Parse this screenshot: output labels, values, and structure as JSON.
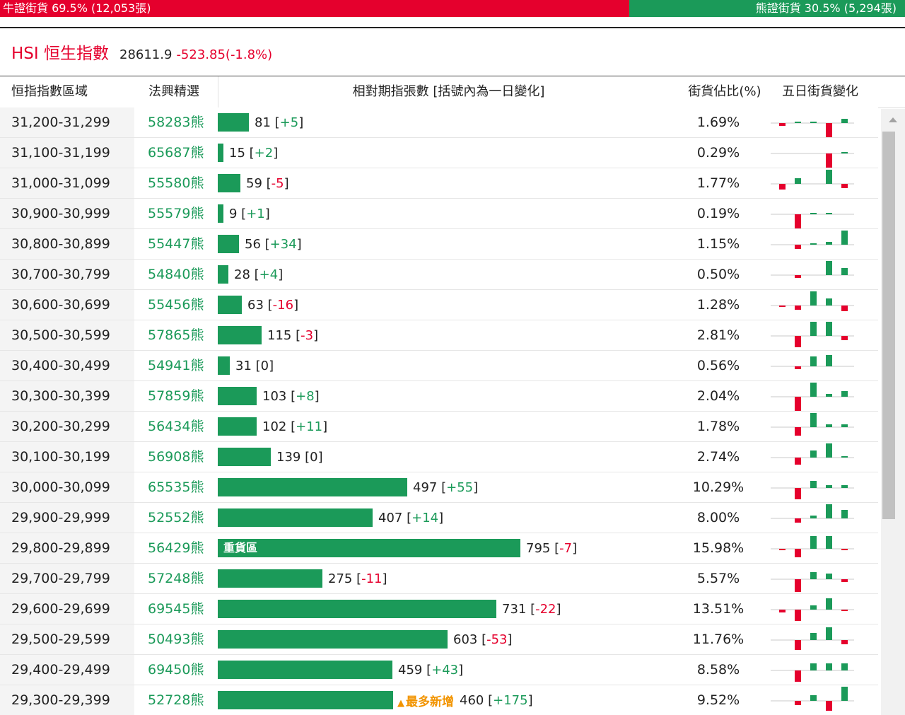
{
  "summary": {
    "bull_label": "牛證街貨 69.5% (12,053張)",
    "bull_fraction": 0.695,
    "bear_label": "熊證街貨 30.5% (5,294張)"
  },
  "index": {
    "name": "HSI 恒生指數",
    "value": "28611.9",
    "change": "-523.85(-1.8%)"
  },
  "headers": {
    "range": "恒指指數區域",
    "warrant": "法興精選",
    "qty": "相對期指張數 [括號內為一日變化]",
    "pct": "街貨佔比(%)",
    "five_day": "五日街貨變化"
  },
  "colors": {
    "up": "#1b9a59",
    "down": "#e5002d",
    "tag": "#f29400"
  },
  "bar_scale_max": 795,
  "rows": [
    {
      "range": "31,200-31,299",
      "warrant": "58283熊",
      "qty": 81,
      "qty_label": "81",
      "chg": "+5",
      "pct": "1.69%",
      "five": [
        -1,
        0.5,
        0.5,
        -5,
        1.5
      ]
    },
    {
      "range": "31,100-31,199",
      "warrant": "65687熊",
      "qty": 15,
      "qty_label": "15",
      "chg": "+2",
      "pct": "0.29%",
      "five": [
        0,
        0,
        0,
        -5,
        0.5
      ]
    },
    {
      "range": "31,000-31,099",
      "warrant": "55580熊",
      "qty": 59,
      "qty_label": "59",
      "chg": "-5",
      "pct": "1.77%",
      "five": [
        -2,
        2,
        0,
        5,
        -1.5
      ]
    },
    {
      "range": "30,900-30,999",
      "warrant": "55579熊",
      "qty": 9,
      "qty_label": "9",
      "chg": "+1",
      "pct": "0.19%",
      "five": [
        0,
        -5,
        0.5,
        0.5,
        0
      ]
    },
    {
      "range": "30,800-30,899",
      "warrant": "55447熊",
      "qty": 56,
      "qty_label": "56",
      "chg": "+34",
      "pct": "1.15%",
      "five": [
        0,
        -1.5,
        0.5,
        1,
        5
      ]
    },
    {
      "range": "30,700-30,799",
      "warrant": "54840熊",
      "qty": 28,
      "qty_label": "28",
      "chg": "+4",
      "pct": "0.50%",
      "five": [
        0,
        -1,
        0,
        5,
        2.5
      ]
    },
    {
      "range": "30,600-30,699",
      "warrant": "55456熊",
      "qty": 63,
      "qty_label": "63",
      "chg": "-16",
      "pct": "1.28%",
      "five": [
        -0.5,
        -1.5,
        5,
        2.5,
        -2
      ]
    },
    {
      "range": "30,500-30,599",
      "warrant": "57865熊",
      "qty": 115,
      "qty_label": "115",
      "chg": "-3",
      "pct": "2.81%",
      "five": [
        0,
        -4,
        5,
        5,
        -1.5
      ]
    },
    {
      "range": "30,400-30,499",
      "warrant": "54941熊",
      "qty": 31,
      "qty_label": "31",
      "chg": "0",
      "pct": "0.56%",
      "five": [
        0,
        -1,
        3.5,
        4,
        0
      ]
    },
    {
      "range": "30,300-30,399",
      "warrant": "57859熊",
      "qty": 103,
      "qty_label": "103",
      "chg": "+8",
      "pct": "2.04%",
      "five": [
        0,
        -5,
        5,
        1,
        2
      ]
    },
    {
      "range": "30,200-30,299",
      "warrant": "56434熊",
      "qty": 102,
      "qty_label": "102",
      "chg": "+11",
      "pct": "1.78%",
      "five": [
        0,
        -3,
        5,
        1,
        1
      ]
    },
    {
      "range": "30,100-30,199",
      "warrant": "56908熊",
      "qty": 139,
      "qty_label": "139",
      "chg": "0",
      "pct": "2.74%",
      "five": [
        0,
        -2.5,
        2.5,
        5,
        0.5
      ]
    },
    {
      "range": "30,000-30,099",
      "warrant": "65535熊",
      "qty": 497,
      "qty_label": "497",
      "chg": "+55",
      "pct": "10.29%",
      "five": [
        0,
        -4,
        2.5,
        1,
        1
      ]
    },
    {
      "range": "29,900-29,999",
      "warrant": "52552熊",
      "qty": 407,
      "qty_label": "407",
      "chg": "+14",
      "pct": "8.00%",
      "five": [
        0,
        -1.5,
        1,
        5,
        3
      ]
    },
    {
      "range": "29,800-29,899",
      "warrant": "56429熊",
      "qty": 795,
      "qty_label": "795",
      "chg": "-7",
      "pct": "15.98%",
      "five": [
        -0.5,
        -3,
        4.5,
        4.5,
        -0.5
      ],
      "bar_text": "重貨區"
    },
    {
      "range": "29,700-29,799",
      "warrant": "57248熊",
      "qty": 275,
      "qty_label": "275",
      "chg": "-11",
      "pct": "5.57%",
      "five": [
        0,
        -4.5,
        2.5,
        2,
        -1
      ]
    },
    {
      "range": "29,600-29,699",
      "warrant": "69545熊",
      "qty": 731,
      "qty_label": "731",
      "chg": "-22",
      "pct": "13.51%",
      "five": [
        -1,
        -4,
        1.5,
        4,
        -0.5
      ]
    },
    {
      "range": "29,500-29,599",
      "warrant": "50493熊",
      "qty": 603,
      "qty_label": "603",
      "chg": "-53",
      "pct": "11.76%",
      "five": [
        0,
        -3.5,
        2.5,
        4.5,
        -1.5
      ]
    },
    {
      "range": "29,400-29,499",
      "warrant": "69450熊",
      "qty": 459,
      "qty_label": "459",
      "chg": "+43",
      "pct": "8.58%",
      "five": [
        0,
        -4,
        2.5,
        2.5,
        2.5
      ]
    },
    {
      "range": "29,300-29,399",
      "warrant": "52728熊",
      "qty": 460,
      "qty_label": "460",
      "chg": "+175",
      "pct": "9.52%",
      "five": [
        0,
        -1.5,
        2,
        -3.5,
        5
      ],
      "tag": "最多新增"
    }
  ]
}
